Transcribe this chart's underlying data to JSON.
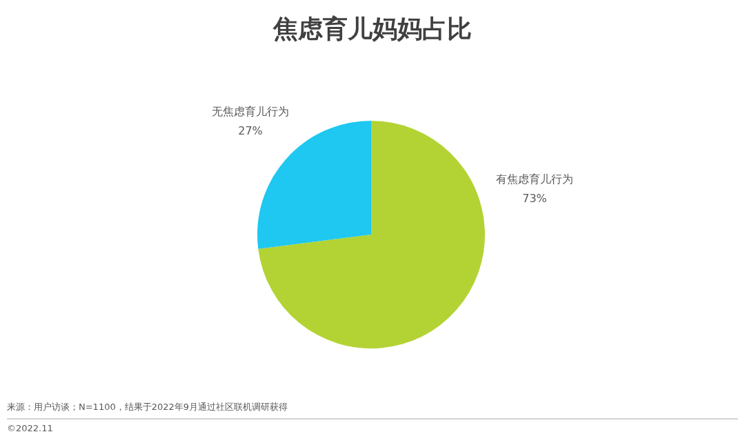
{
  "chart_data": {
    "type": "pie",
    "title": "焦虑育儿妈妈占比",
    "categories": [
      "有焦虑育儿行为",
      "无焦虑育儿行为"
    ],
    "values": [
      73,
      27
    ],
    "colors": [
      "#b3d334",
      "#1ec8f0"
    ],
    "value_labels": [
      "73%",
      "27%"
    ],
    "legend": false,
    "annotations": [
      "来源：用户访谈；N=1100，结果于2022年9月通过社区联机调研获得",
      "©2022.11"
    ]
  }
}
